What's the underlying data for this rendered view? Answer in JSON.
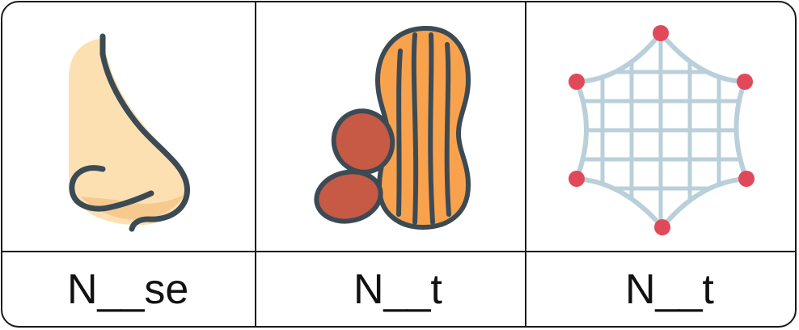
{
  "cards": [
    {
      "icon": "nose-icon",
      "word": "N__se"
    },
    {
      "icon": "peanut-icon",
      "word": "N__t"
    },
    {
      "icon": "net-icon",
      "word": "N__t"
    }
  ],
  "colors": {
    "border": "#1a1a1a",
    "skin": "#fde0b2",
    "skin_shadow": "#f6c98e",
    "outline": "#3c4a54",
    "peanut_shell": "#f9a24e",
    "peanut_kernel": "#c65a45",
    "net_line": "#b9d0da",
    "net_knot": "#e0495a"
  }
}
